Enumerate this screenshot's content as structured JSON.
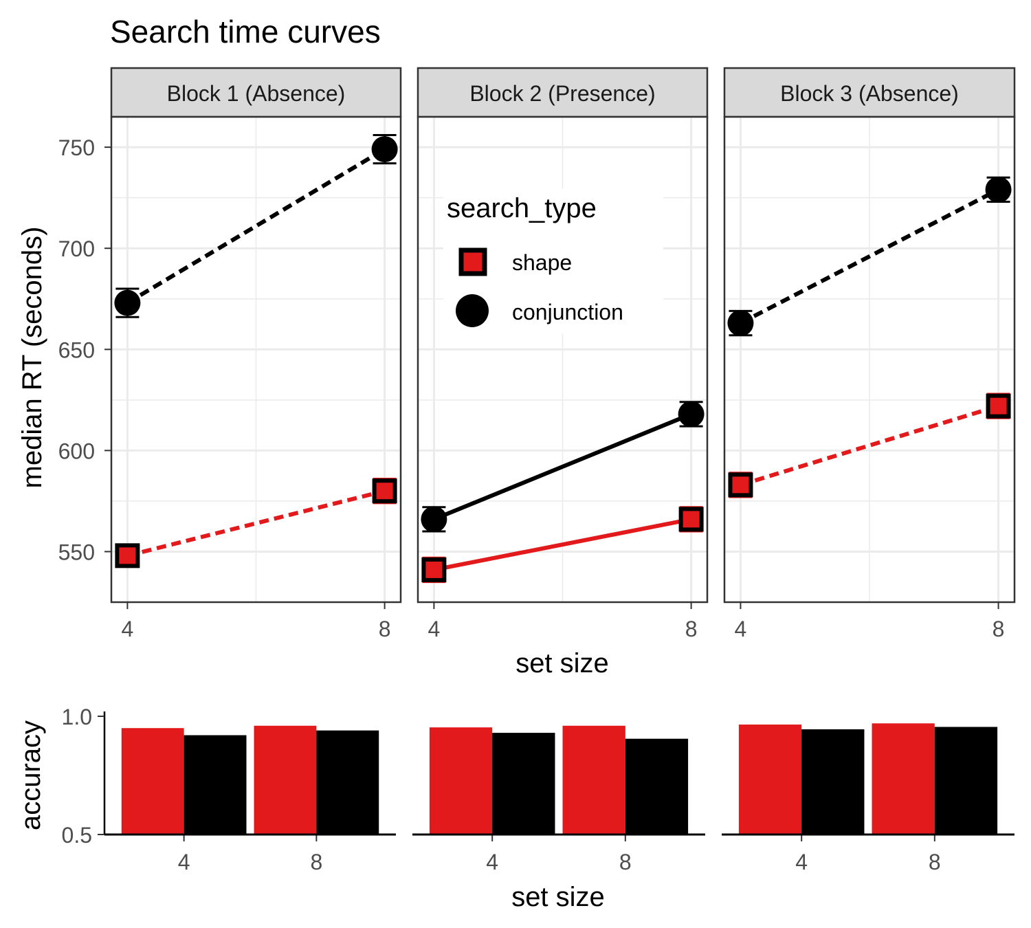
{
  "colors": {
    "shape": "#e31a1c",
    "conjunction": "#000000",
    "strip": "#d9d9d9",
    "grid": "#ebebeb",
    "axis_text": "#4d4d4d"
  },
  "title": "Search time curves",
  "legend": {
    "title": "search_type",
    "items": [
      {
        "key": "shape",
        "label": "shape"
      },
      {
        "key": "conjunction",
        "label": "conjunction"
      }
    ]
  },
  "chart_data": [
    {
      "type": "line",
      "xlabel": "set size",
      "ylabel": "median RT (seconds)",
      "x": [
        4,
        8
      ],
      "ylim": [
        525,
        765
      ],
      "yticks": [
        550,
        600,
        650,
        700,
        750
      ],
      "panels": [
        {
          "strip": "Block 1 (Absence)",
          "linetype": "dashed",
          "series": [
            {
              "name": "shape",
              "values": [
                548,
                580
              ],
              "errors": [
                5,
                6
              ]
            },
            {
              "name": "conjunction",
              "values": [
                673,
                749
              ],
              "errors": [
                7,
                7
              ]
            }
          ]
        },
        {
          "strip": "Block 2 (Presence)",
          "linetype": "solid",
          "series": [
            {
              "name": "shape",
              "values": [
                541,
                566
              ],
              "errors": [
                6,
                6
              ]
            },
            {
              "name": "conjunction",
              "values": [
                566,
                618
              ],
              "errors": [
                6,
                6
              ]
            }
          ]
        },
        {
          "strip": "Block 3 (Absence)",
          "linetype": "dashed",
          "series": [
            {
              "name": "shape",
              "values": [
                583,
                622
              ],
              "errors": [
                6,
                6
              ]
            },
            {
              "name": "conjunction",
              "values": [
                663,
                729
              ],
              "errors": [
                6,
                6
              ]
            }
          ]
        }
      ]
    },
    {
      "type": "bar",
      "xlabel": "set size",
      "ylabel": "accuracy",
      "categories": [
        "4",
        "8"
      ],
      "ylim": [
        0.5,
        1.0
      ],
      "yticks": [
        "0.5",
        "1.0"
      ],
      "panels": [
        {
          "series": [
            {
              "name": "shape",
              "values": [
                0.95,
                0.96
              ]
            },
            {
              "name": "conjunction",
              "values": [
                0.92,
                0.94
              ]
            }
          ]
        },
        {
          "series": [
            {
              "name": "shape",
              "values": [
                0.953,
                0.96
              ]
            },
            {
              "name": "conjunction",
              "values": [
                0.93,
                0.905
              ]
            }
          ]
        },
        {
          "series": [
            {
              "name": "shape",
              "values": [
                0.965,
                0.97
              ]
            },
            {
              "name": "conjunction",
              "values": [
                0.945,
                0.955
              ]
            }
          ]
        }
      ]
    }
  ]
}
